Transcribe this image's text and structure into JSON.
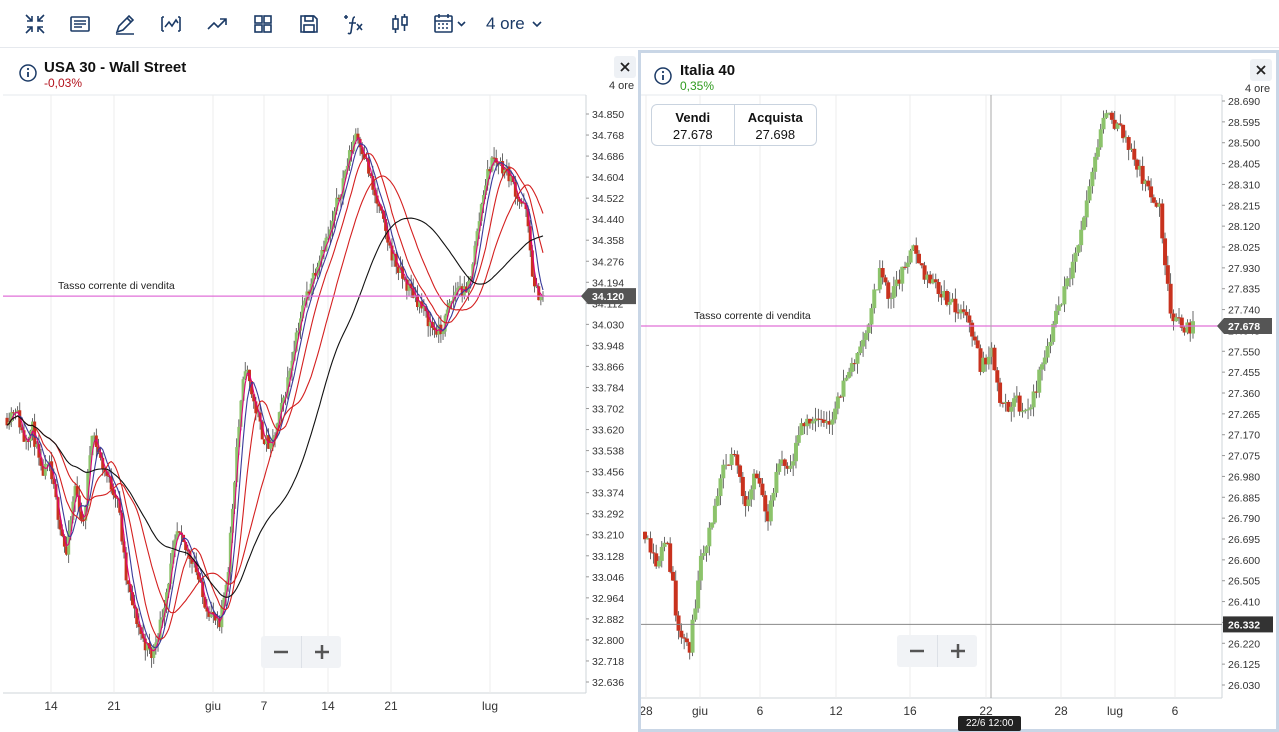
{
  "toolbar": {
    "icons": [
      "collapse-icon",
      "annotation-icon",
      "pencil-icon",
      "indicator-icon",
      "trend-icon",
      "layout-grid-icon",
      "save-icon",
      "function-icon",
      "candlestick-icon",
      "calendar-icon"
    ],
    "timeframe": "4 ore"
  },
  "left_panel": {
    "title": "USA 30 - Wall Street",
    "change": "-0,03%",
    "change_color": "#b3121c",
    "timeframe": "4 ore",
    "line_label": "Tasso corrente di vendita",
    "current_price": "34.120",
    "zoom_minus": "−",
    "zoom_plus": "+"
  },
  "right_panel": {
    "title": "Italia 40",
    "change": "0,35%",
    "change_color": "#2f9a1e",
    "timeframe": "4 ore",
    "line_label": "Tasso corrente di vendita",
    "current_price": "27.678",
    "crosshair_price": "26.332",
    "crosshair_date": "22/6 12:00",
    "sell_label": "Vendi",
    "sell_value": "27.678",
    "buy_label": "Acquista",
    "buy_value": "27.698",
    "zoom_minus": "−",
    "zoom_plus": "+"
  },
  "chart_data": [
    {
      "type": "candlestick",
      "title": "USA 30 - Wall Street",
      "y_ticks": [
        "34.850",
        "34.768",
        "34.686",
        "34.604",
        "34.522",
        "34.440",
        "34.358",
        "34.276",
        "34.194",
        "34.112",
        "34.030",
        "33.948",
        "33.866",
        "33.784",
        "33.702",
        "33.620",
        "33.538",
        "33.456",
        "33.374",
        "33.292",
        "33.210",
        "33.128",
        "33.046",
        "32.964",
        "32.882",
        "32.800",
        "32.718",
        "32.636"
      ],
      "x_ticks": [
        "14",
        "21",
        "giu",
        "7",
        "14",
        "21",
        "lug"
      ],
      "ylim": [
        32.62,
        34.88
      ],
      "current_price": 34.12,
      "close_path": [
        [
          0,
          33.66
        ],
        [
          4,
          33.7
        ],
        [
          8,
          33.58
        ],
        [
          12,
          33.62
        ],
        [
          16,
          33.45
        ],
        [
          20,
          33.47
        ],
        [
          24,
          33.3
        ],
        [
          28,
          33.14
        ],
        [
          32,
          33.4
        ],
        [
          36,
          33.25
        ],
        [
          40,
          33.62
        ],
        [
          44,
          33.5
        ],
        [
          48,
          33.42
        ],
        [
          52,
          33.36
        ],
        [
          56,
          33.05
        ],
        [
          60,
          32.92
        ],
        [
          64,
          32.82
        ],
        [
          68,
          32.76
        ],
        [
          72,
          32.88
        ],
        [
          76,
          33.05
        ],
        [
          80,
          33.22
        ],
        [
          84,
          33.16
        ],
        [
          88,
          33.12
        ],
        [
          92,
          32.98
        ],
        [
          96,
          32.92
        ],
        [
          100,
          32.86
        ],
        [
          104,
          33.1
        ],
        [
          108,
          33.55
        ],
        [
          112,
          33.86
        ],
        [
          116,
          33.72
        ],
        [
          120,
          33.6
        ],
        [
          124,
          33.54
        ],
        [
          128,
          33.66
        ],
        [
          132,
          33.8
        ],
        [
          136,
          33.98
        ],
        [
          140,
          34.1
        ],
        [
          144,
          34.2
        ],
        [
          148,
          34.3
        ],
        [
          152,
          34.36
        ],
        [
          156,
          34.5
        ],
        [
          160,
          34.62
        ],
        [
          164,
          34.74
        ],
        [
          168,
          34.66
        ],
        [
          172,
          34.52
        ],
        [
          176,
          34.42
        ],
        [
          180,
          34.3
        ],
        [
          184,
          34.22
        ],
        [
          188,
          34.16
        ],
        [
          192,
          34.12
        ],
        [
          196,
          34.06
        ],
        [
          200,
          34.0
        ],
        [
          204,
          33.98
        ],
        [
          208,
          34.08
        ],
        [
          212,
          34.16
        ],
        [
          216,
          34.12
        ],
        [
          220,
          34.3
        ],
        [
          224,
          34.52
        ],
        [
          228,
          34.64
        ],
        [
          232,
          34.62
        ],
        [
          236,
          34.58
        ],
        [
          240,
          34.5
        ],
        [
          244,
          34.44
        ],
        [
          248,
          34.14
        ],
        [
          252,
          34.12
        ]
      ],
      "moving_averages": [
        {
          "color": "#e0007a",
          "period": 3
        },
        {
          "color": "#3a3a9a",
          "period": 6
        },
        {
          "color": "#d42020",
          "period": 12
        },
        {
          "color": "#d42020",
          "period": 24
        },
        {
          "color": "#111111",
          "period": 48
        }
      ]
    },
    {
      "type": "candlestick",
      "title": "Italia 40",
      "y_ticks": [
        "28.690",
        "28.595",
        "28.500",
        "28.405",
        "28.310",
        "28.215",
        "28.120",
        "28.025",
        "27.930",
        "27.835",
        "27.740",
        "27.645",
        "27.550",
        "27.455",
        "27.360",
        "27.265",
        "27.170",
        "27.075",
        "26.980",
        "26.885",
        "26.790",
        "26.695",
        "26.600",
        "26.505",
        "26.410",
        "26.315",
        "26.220",
        "26.125",
        "26.030"
      ],
      "x_ticks": [
        "28",
        "giu",
        "6",
        "12",
        "16",
        "22",
        "28",
        "lug",
        "6"
      ],
      "ylim": [
        26.0,
        28.72
      ],
      "current_price": 27.678,
      "crosshair_price": 26.332,
      "close_path": [
        [
          0,
          26.75
        ],
        [
          4,
          26.62
        ],
        [
          8,
          26.7
        ],
        [
          12,
          26.3
        ],
        [
          16,
          26.22
        ],
        [
          20,
          26.62
        ],
        [
          24,
          26.8
        ],
        [
          28,
          27.02
        ],
        [
          32,
          27.1
        ],
        [
          36,
          26.88
        ],
        [
          40,
          27.02
        ],
        [
          44,
          26.8
        ],
        [
          48,
          27.05
        ],
        [
          52,
          27.02
        ],
        [
          56,
          27.22
        ],
        [
          60,
          27.28
        ],
        [
          64,
          27.22
        ],
        [
          68,
          27.3
        ],
        [
          72,
          27.45
        ],
        [
          76,
          27.55
        ],
        [
          80,
          27.7
        ],
        [
          84,
          27.92
        ],
        [
          88,
          27.8
        ],
        [
          92,
          27.92
        ],
        [
          96,
          28.02
        ],
        [
          100,
          27.92
        ],
        [
          104,
          27.86
        ],
        [
          108,
          27.8
        ],
        [
          112,
          27.74
        ],
        [
          116,
          27.7
        ],
        [
          120,
          27.5
        ],
        [
          124,
          27.56
        ],
        [
          128,
          27.3
        ],
        [
          132,
          27.35
        ],
        [
          136,
          27.28
        ],
        [
          140,
          27.4
        ],
        [
          144,
          27.6
        ],
        [
          148,
          27.75
        ],
        [
          152,
          27.9
        ],
        [
          156,
          28.1
        ],
        [
          160,
          28.35
        ],
        [
          164,
          28.62
        ],
        [
          168,
          28.6
        ],
        [
          172,
          28.52
        ],
        [
          176,
          28.4
        ],
        [
          180,
          28.28
        ],
        [
          184,
          28.2
        ],
        [
          188,
          27.74
        ],
        [
          192,
          27.68
        ],
        [
          196,
          27.67
        ]
      ]
    }
  ]
}
